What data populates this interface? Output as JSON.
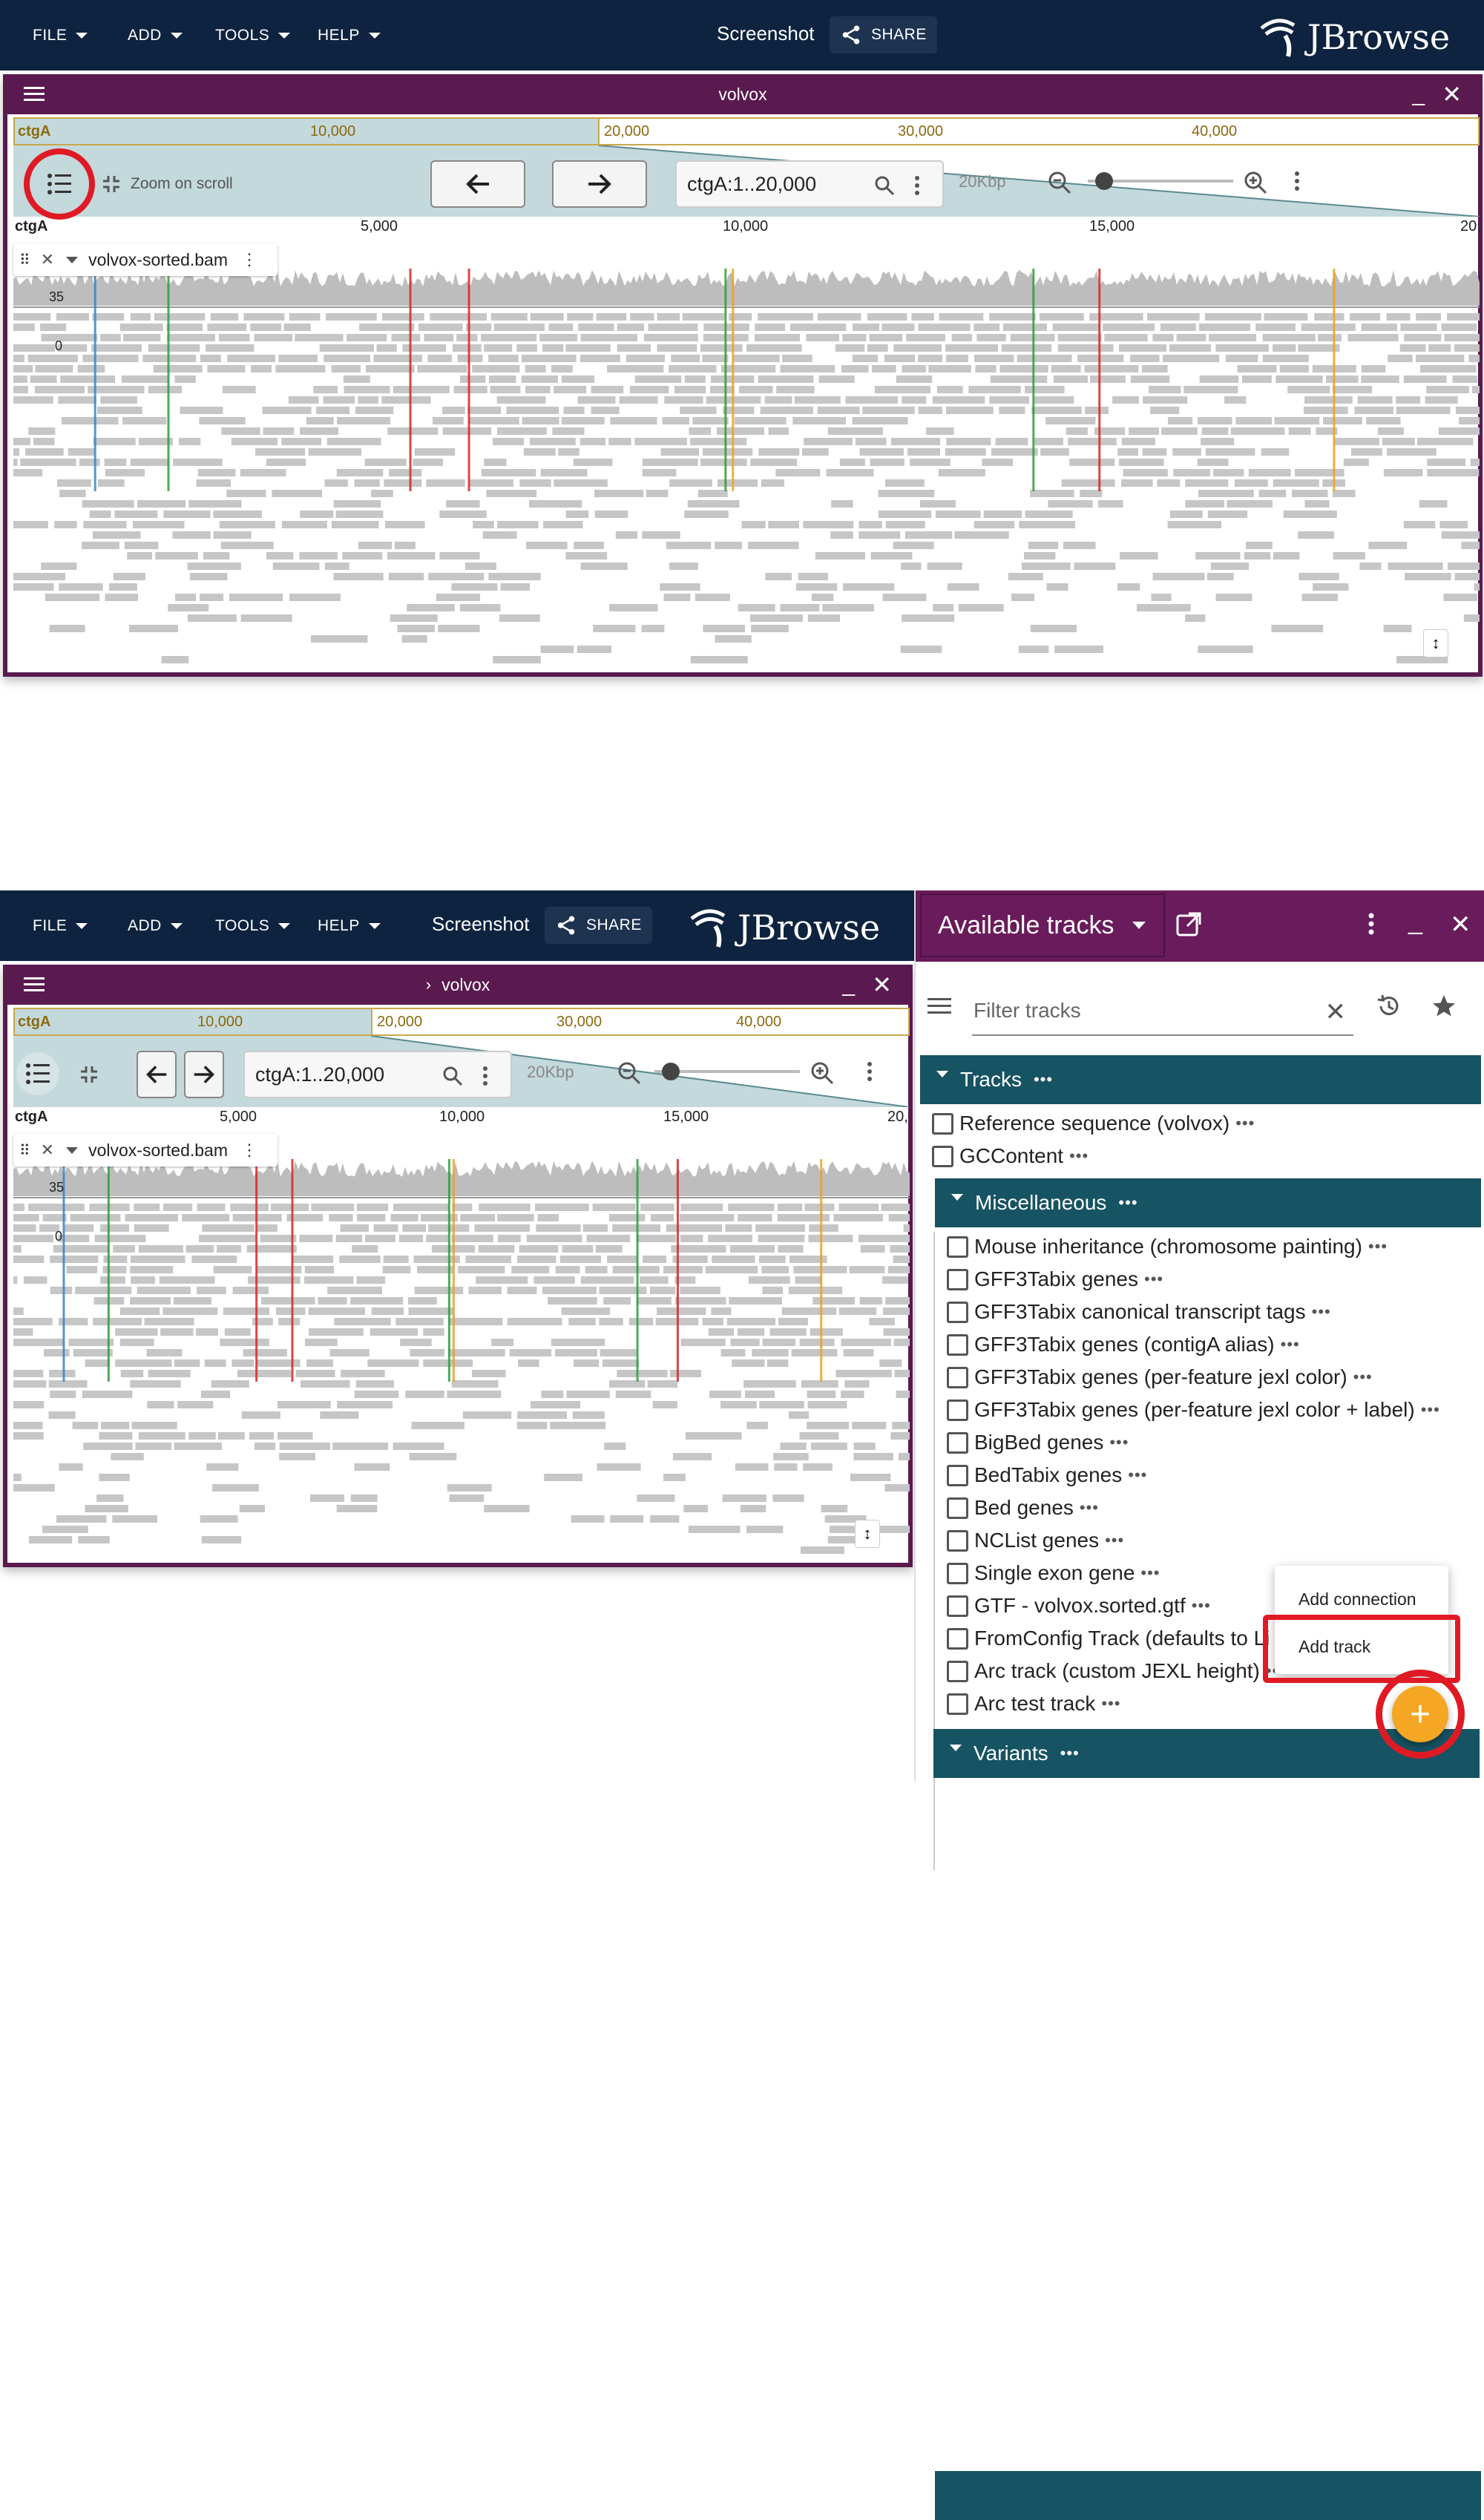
{
  "menu": {
    "file": "FILE",
    "add": "ADD",
    "tools": "TOOLS",
    "help": "HELP"
  },
  "screenshot_label": "Screenshot",
  "share_label": "SHARE",
  "logo_text": "JBrowse",
  "view": {
    "title": "volvox",
    "overview_ctg": "ctgA",
    "overview_ticks": [
      "10,000",
      "20,000",
      "30,000",
      "40,000"
    ],
    "ruler_ctg": "ctgA",
    "ruler_ticks": [
      "5,000",
      "10,000",
      "15,000",
      "20,"
    ],
    "zoom_on_scroll": "Zoom on scroll",
    "location": "ctgA:1..20,000",
    "scale_label": "20Kbp",
    "track_name": "volvox-sorted.bam",
    "coverage_max": "35",
    "coverage_min": "0"
  },
  "drawer": {
    "title": "Available tracks",
    "filter_placeholder": "Filter tracks",
    "categories": {
      "tracks": "Tracks",
      "misc": "Miscellaneous",
      "variants": "Variants"
    },
    "top_items": [
      "Reference sequence (volvox)",
      "GCContent"
    ],
    "misc_items": [
      "Mouse inheritance (chromosome painting)",
      "GFF3Tabix genes",
      "GFF3Tabix canonical transcript tags",
      "GFF3Tabix genes (contigA alias)",
      "GFF3Tabix genes (per-feature jexl color)",
      "GFF3Tabix genes (per-feature jexl color + label)",
      "BigBed genes",
      "BedTabix genes",
      "Bed genes",
      "NCList genes",
      "Single exon gene",
      "GTF - volvox.sorted.gtf",
      "FromConfig Track (defaults to Li",
      "Arc track (custom JEXL height)",
      "Arc test track"
    ],
    "ellipsis": "•••"
  },
  "popup": {
    "add_connection": "Add connection",
    "add_track": "Add track"
  },
  "fab_symbol": "+",
  "colors": {
    "appbar": "#0d233f",
    "view_header": "#5a1a4f",
    "drawer_header": "#6a1b5b",
    "category": "#165363",
    "fab": "#f5a623",
    "highlight": "#e01a24"
  }
}
